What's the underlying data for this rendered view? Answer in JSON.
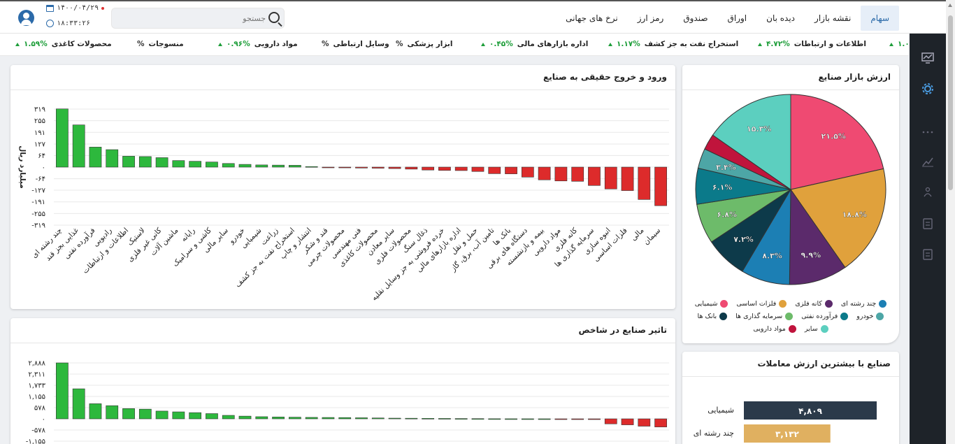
{
  "header": {
    "date": "۱۴۰۰/۰۴/۲۹",
    "time": "۱۸:۳۳:۲۶",
    "search_placeholder": "جستجو",
    "tabs": [
      {
        "label": "سهام",
        "active": true
      },
      {
        "label": "نقشه بازار"
      },
      {
        "label": "دیده بان"
      },
      {
        "label": "اوراق"
      },
      {
        "label": "صندوق"
      },
      {
        "label": "رمز ارز"
      },
      {
        "label": "نرخ های جهانی"
      }
    ]
  },
  "ticker": [
    {
      "name": "محصولات کاغذی",
      "value": "۱.۵۹%"
    },
    {
      "name": "منسوجات",
      "value": "%"
    },
    {
      "name": "مواد دارویی",
      "value": "۰.۹۶%"
    },
    {
      "name": "وسایل ارتباطی",
      "value": "%"
    },
    {
      "name": "ابزار پزشکی",
      "value": "%"
    },
    {
      "name": "اداره بازارهای مالی",
      "value": "۰.۴۵%"
    },
    {
      "name": "استخراج نفت به جز کشف",
      "value": "۱.۱۷%"
    },
    {
      "name": "اطلاعات و ارتباطات",
      "value": "۴.۷۲%"
    },
    {
      "name": "",
      "value": "۱.۰"
    }
  ],
  "sidebar_icons": [
    "chart-line-icon",
    "gear-icon",
    "more-dots-icon",
    "trend-icon",
    "people-icon",
    "clipboard-icon",
    "list-icon"
  ],
  "colors": {
    "positive": "#2db83d",
    "negative": "#dd2b2b",
    "accent": "#2b6aa9",
    "sidebar": "#1e2329"
  },
  "charts": {
    "flow_title": "ورود و خروج حقیقی به صنایع",
    "impact_title": "تاثیر صنایع در شاخص",
    "pie_title": "ارزش بازار صنایع",
    "top_title": "صنایع با بیشترین ارزش معاملات"
  },
  "chart_data": [
    {
      "type": "bar",
      "title": "ورود و خروج حقیقی به صنایع",
      "ylabel": "میلیارد ریال",
      "ylim": [
        -319,
        319
      ],
      "yticks": [
        319,
        255,
        191,
        127,
        64,
        0,
        -64,
        -127,
        -191,
        -255,
        -319
      ],
      "ytick_labels": [
        "۳۱۹",
        "۲۵۵",
        "۱۹۱",
        "۱۲۷",
        "۶۴",
        "۰",
        "-۶۴",
        "-۱۲۷",
        "-۱۹۱",
        "-۲۵۵",
        "-۳۱۹"
      ],
      "categories": [
        "چند رشته ای",
        "غذایی بجز قند",
        "فرآورده نفتی",
        "رادیویی",
        "اطلاعات و ارتباطات",
        "لاستیک",
        "کانی غیر فلزی",
        "ماشین آلات",
        "رایانه",
        "کاشی و سرامیک",
        "سایر مالی",
        "خودرو",
        "شیمیایی",
        "زراعت",
        "استخراج نفت به جز کشف",
        "انتشار و چاپ",
        "قند و شکر",
        "محصولات چرمی",
        "فنی مهندسی",
        "محصولات کاغذی",
        "سایر معادن",
        "محصولات فلزی",
        "ذغال سنگ",
        "خرده فروشی به جز وسایل نقلیه",
        "اداره بازارهای مالی",
        "حمل و نقل",
        "تامین آب، برق، گاز",
        "بانک ها",
        "دستگاه های برقی",
        "بیمه و بازنشسته",
        "مواد دارویی",
        "کانه فلزی",
        "سرمایه گذاری ها",
        "انبوه سازی",
        "فلزات اساسی",
        "مالی",
        "سیمان"
      ],
      "values": [
        320,
        232,
        110,
        96,
        60,
        58,
        52,
        36,
        32,
        28,
        20,
        15,
        12,
        11,
        10,
        3,
        -3,
        -4,
        -5,
        -6,
        -8,
        -11,
        -16,
        -18,
        -19,
        -24,
        -36,
        -37,
        -55,
        -70,
        -76,
        -78,
        -101,
        -120,
        -129,
        -178,
        -212
      ]
    },
    {
      "type": "bar",
      "title": "تاثیر صنایع در شاخص",
      "ytick_labels": [
        "۲,۸۸۸",
        "۲,۳۱۱",
        "۱,۷۳۳",
        "۱,۱۵۵",
        "۵۷۸",
        "۰",
        "-۵۷۸",
        "-۱,۱۵۵"
      ],
      "yticks": [
        2888,
        2311,
        1733,
        1155,
        578,
        0,
        -578,
        -1155
      ],
      "values": [
        2888,
        1550,
        780,
        680,
        530,
        500,
        400,
        360,
        320,
        270,
        180,
        140,
        110,
        95,
        85,
        75,
        70,
        65,
        55,
        45,
        35,
        30,
        25,
        20,
        15,
        10,
        5,
        3,
        2,
        1,
        -2,
        -3,
        -5,
        -260,
        -310,
        -380,
        -420
      ]
    },
    {
      "type": "pie",
      "title": "ارزش بازار صنایع",
      "slices": [
        {
          "name": "شیمیایی",
          "value": 21.5,
          "label": "۲۱.۵%",
          "color": "#ef4a72"
        },
        {
          "name": "فلزات اساسی",
          "value": 18.8,
          "label": "۱۸.۸%",
          "color": "#e0a13c"
        },
        {
          "name": "کانه فلزی",
          "value": 9.9,
          "label": "۹.۹%",
          "color": "#5b2a6b"
        },
        {
          "name": "چند رشته ای",
          "value": 8.3,
          "label": "۸.۳%",
          "color": "#1c7fb4"
        },
        {
          "name": "بانک ها",
          "value": 7.2,
          "label": "۷.۲%",
          "color": "#0d3a4a"
        },
        {
          "name": "سرمایه گذاری ها",
          "value": 6.8,
          "label": "۶.۸%",
          "color": "#6dbb6a"
        },
        {
          "name": "فرآورده نفتی",
          "value": 6.1,
          "label": "۶.۱%",
          "color": "#0b7a8a"
        },
        {
          "name": "خودرو",
          "value": 3.4,
          "label": "۳.۴%",
          "color": "#4da6a6"
        },
        {
          "name": "مواد دارویی",
          "value": 2.7,
          "label": "",
          "color": "#c0143c"
        },
        {
          "name": "سایر",
          "value": 15.3,
          "label": "۱۵.۳%",
          "color": "#5ccfbf"
        }
      ]
    },
    {
      "type": "bar",
      "orientation": "horizontal",
      "title": "صنایع با بیشترین ارزش معاملات",
      "categories": [
        "شیمیایی",
        "چند رشته ای"
      ],
      "values": [
        4809,
        3132
      ],
      "value_labels": [
        "۴,۸۰۹",
        "۳,۱۳۲"
      ],
      "colors": [
        "#2b3a4a",
        "#e0b060"
      ]
    }
  ],
  "legend_rows": [
    [
      "چند رشته ای",
      "کانه فلزی",
      "فلزات اساسی",
      "شیمیایی"
    ],
    [
      "خودرو",
      "فرآورده نفتی",
      "سرمایه گذاری ها",
      "بانک ها"
    ],
    [
      "سایر",
      "مواد دارویی"
    ]
  ],
  "legend_colors": {
    "چند رشته ای": "#1c7fb4",
    "کانه فلزی": "#5b2a6b",
    "فلزات اساسی": "#e0a13c",
    "شیمیایی": "#ef4a72",
    "خودرو": "#4da6a6",
    "فرآورده نفتی": "#0b7a8a",
    "سرمایه گذاری ها": "#6dbb6a",
    "بانک ها": "#0d3a4a",
    "سایر": "#5ccfbf",
    "مواد دارویی": "#c0143c"
  }
}
